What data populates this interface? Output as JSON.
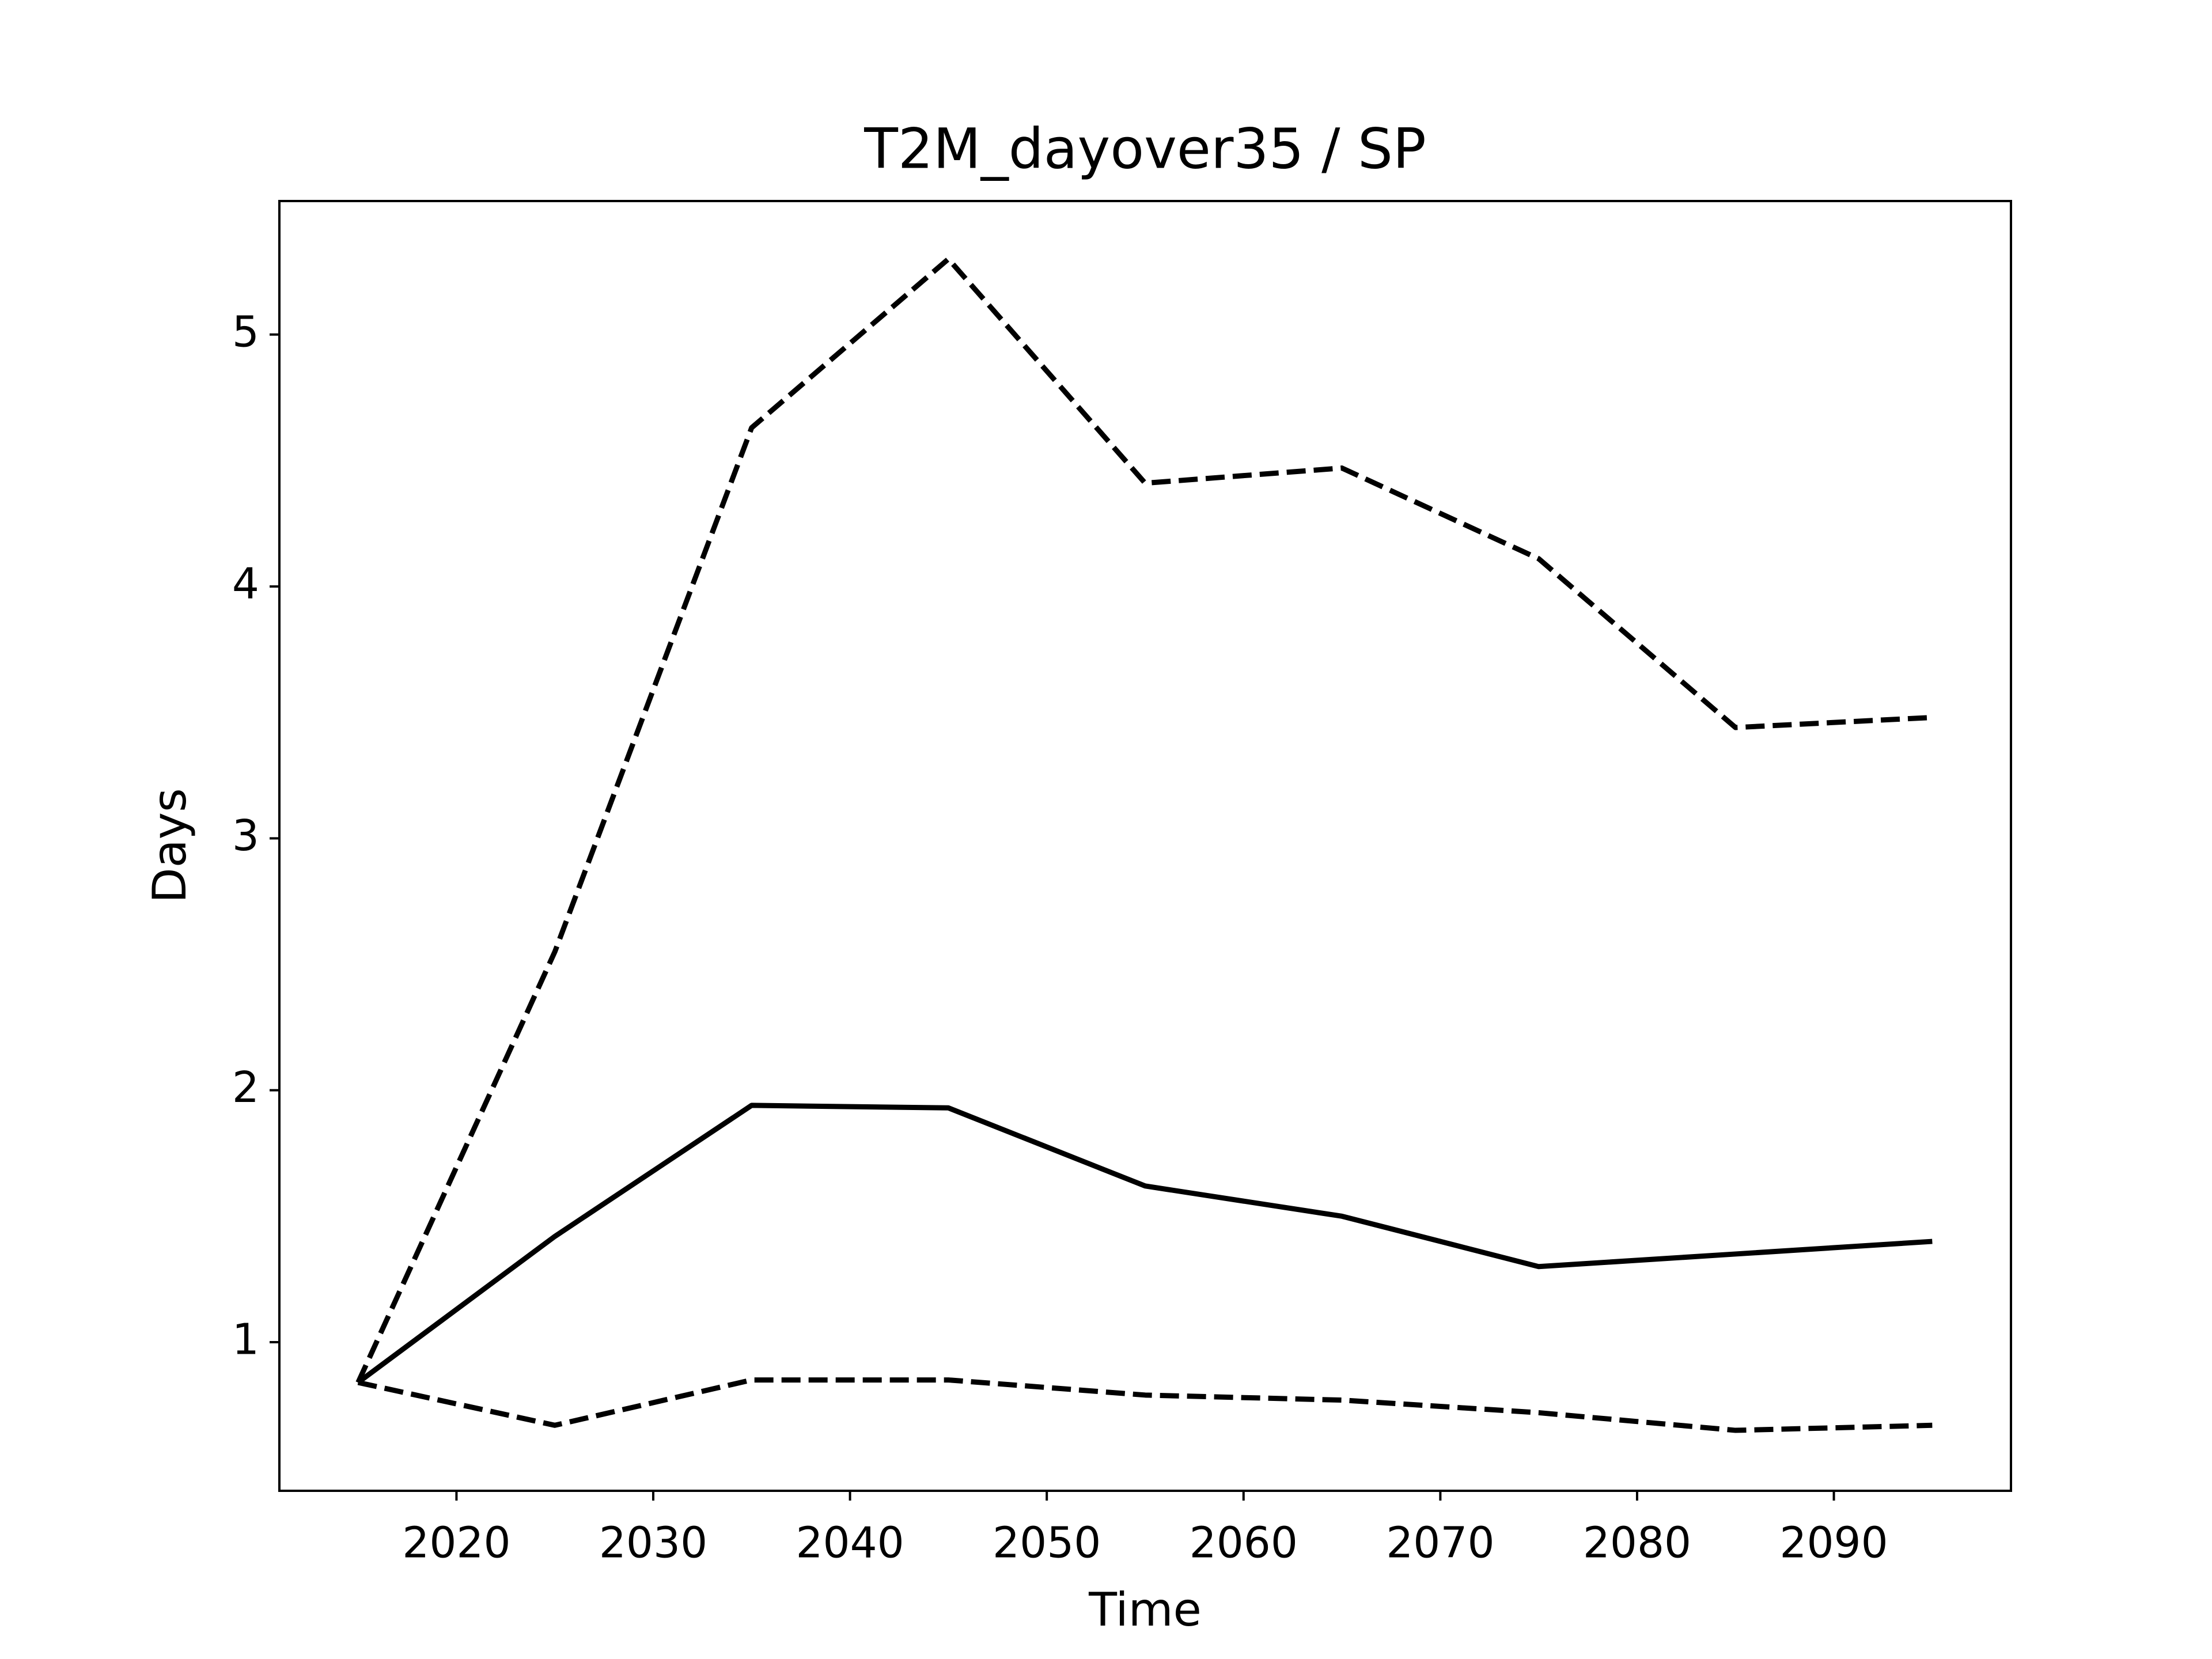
{
  "chart_data": {
    "type": "line",
    "title": "T2M_dayover35 / SP",
    "x_label": "Time",
    "y_label": "Days",
    "x": [
      2015,
      2025,
      2035,
      2045,
      2055,
      2065,
      2075,
      2085,
      2095
    ],
    "series": [
      {
        "color": "#000000",
        "linestyle": "solid",
        "values": [
          0.84,
          1.42,
          1.94,
          1.93,
          1.62,
          1.5,
          1.3,
          1.35,
          1.4
        ]
      },
      {
        "color": "#000000",
        "linestyle": "dashed",
        "values": [
          0.84,
          2.55,
          4.63,
          5.3,
          4.41,
          4.47,
          4.11,
          3.44,
          3.48
        ]
      },
      {
        "color": "#000000",
        "linestyle": "dashed",
        "values": [
          0.84,
          0.67,
          0.85,
          0.85,
          0.79,
          0.77,
          0.72,
          0.65,
          0.67
        ]
      }
    ],
    "xlim": [
      2011,
      2099
    ],
    "xticks": [
      2020,
      2030,
      2040,
      2050,
      2060,
      2070,
      2080,
      2090
    ],
    "ylim": [
      0.41,
      5.53
    ],
    "yticks": [
      1,
      2,
      3,
      4,
      5
    ],
    "grid": false
  }
}
